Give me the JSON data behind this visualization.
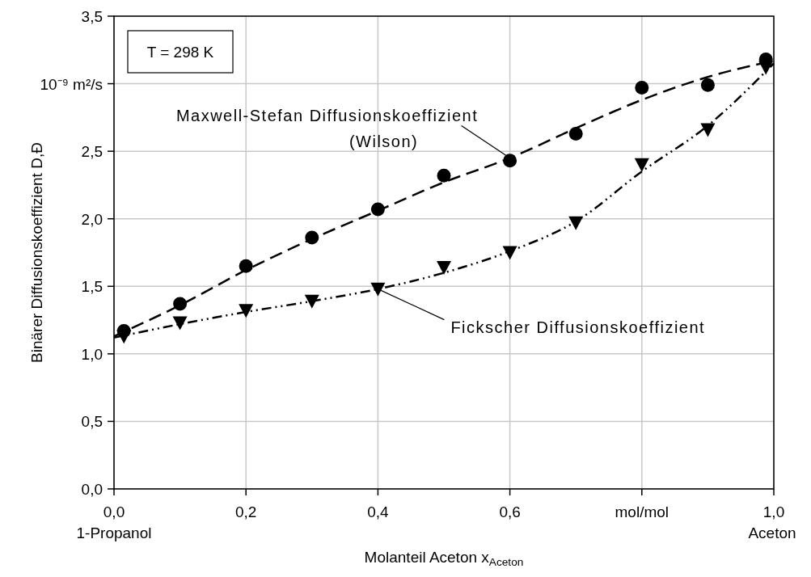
{
  "chart_data": {
    "type": "scatter",
    "xlabel": "Molanteil Aceton x$_{Aceton}$",
    "ylabel": "Binärer Diffusionskoeffizient D,Đ",
    "xlim": [
      0,
      1
    ],
    "ylim": [
      0,
      3.5
    ],
    "xticks": [
      {
        "value": 0,
        "label": "0,0\n1-Propanol"
      },
      {
        "value": 0.2,
        "label": "0,2"
      },
      {
        "value": 0.4,
        "label": "0,4"
      },
      {
        "value": 0.6,
        "label": "0,6"
      },
      {
        "value": 0.8,
        "label": "mol/mol"
      },
      {
        "value": 1,
        "label": "1,0\nAceton"
      }
    ],
    "yticks": [
      {
        "value": 0,
        "label": "0,0"
      },
      {
        "value": 0.5,
        "label": "0,5"
      },
      {
        "value": 1,
        "label": "1,0"
      },
      {
        "value": 1.5,
        "label": "1,5"
      },
      {
        "value": 2,
        "label": "2,0"
      },
      {
        "value": 2.5,
        "label": "2,5"
      },
      {
        "value": 3,
        "label": null
      },
      {
        "value": 3.5,
        "label": "3,5"
      }
    ],
    "grid": true,
    "series": [
      {
        "type": "scatter",
        "marker": "circle",
        "color": "#000000",
        "x": [
          0.015,
          0.1,
          0.2,
          0.3,
          0.4,
          0.5,
          0.6,
          0.7,
          0.8,
          0.9,
          0.988
        ],
        "values": [
          1.17,
          1.37,
          1.65,
          1.86,
          2.07,
          2.32,
          2.43,
          2.63,
          2.97,
          2.99,
          3.18
        ]
      },
      {
        "type": "scatter",
        "marker": "triangle",
        "color": "#000000",
        "x": [
          0.015,
          0.1,
          0.2,
          0.3,
          0.4,
          0.5,
          0.6,
          0.7,
          0.8,
          0.9,
          0.988
        ],
        "values": [
          1.13,
          1.23,
          1.32,
          1.39,
          1.48,
          1.64,
          1.75,
          1.97,
          2.4,
          2.66,
          3.12
        ]
      },
      {
        "type": "line",
        "line_style": "dashed",
        "color": "#000000",
        "x": [
          0,
          0.1,
          0.2,
          0.3,
          0.4,
          0.5,
          0.6,
          0.7,
          0.8,
          0.9,
          1
        ],
        "values": [
          1.13,
          1.36,
          1.62,
          1.85,
          2.06,
          2.27,
          2.45,
          2.67,
          2.88,
          3.05,
          3.17
        ]
      },
      {
        "type": "line",
        "line_style": "dotted",
        "color": "#000000",
        "x": [
          0,
          0.1,
          0.2,
          0.3,
          0.4,
          0.5,
          0.6,
          0.7,
          0.8,
          0.9,
          1
        ],
        "values": [
          1.12,
          1.22,
          1.31,
          1.39,
          1.48,
          1.6,
          1.76,
          1.98,
          2.35,
          2.69,
          3.15
        ]
      }
    ],
    "annotations": [
      "T = 298 K",
      "10⁻⁹ m²/s",
      {
        "text": "Maxwell-Stefan Diffusionskoeffizient\n(Wilson)",
        "x": 0.6,
        "y": 2.45
      },
      {
        "text": "Fickscher Diffusionskoeffizient",
        "x": 0.4,
        "y": 1.48
      }
    ]
  }
}
